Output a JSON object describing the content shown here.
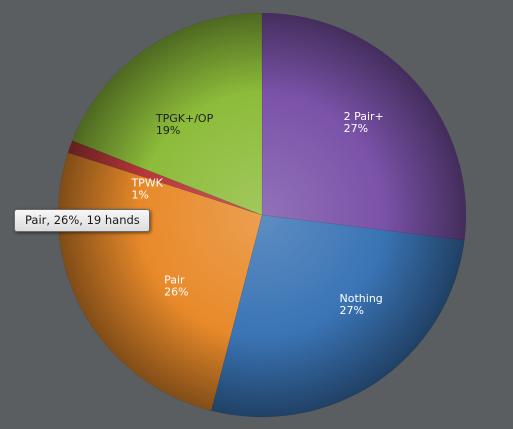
{
  "chart_data": {
    "type": "pie",
    "slices": [
      {
        "name": "2 Pair+",
        "percent_label": "27%",
        "value": 27,
        "color": "#7a52a8"
      },
      {
        "name": "Nothing",
        "percent_label": "27%",
        "value": 27,
        "color": "#3a74b5"
      },
      {
        "name": "Pair",
        "percent_label": "26%",
        "value": 26,
        "color": "#e88a2a"
      },
      {
        "name": "TPWK",
        "percent_label": "1%",
        "value": 1,
        "color": "#b8383a"
      },
      {
        "name": "TPGK+/OP",
        "percent_label": "19%",
        "value": 19,
        "color": "#8cbc3a"
      }
    ]
  },
  "tooltip": {
    "text": "Pair, 26%, 19 hands"
  }
}
